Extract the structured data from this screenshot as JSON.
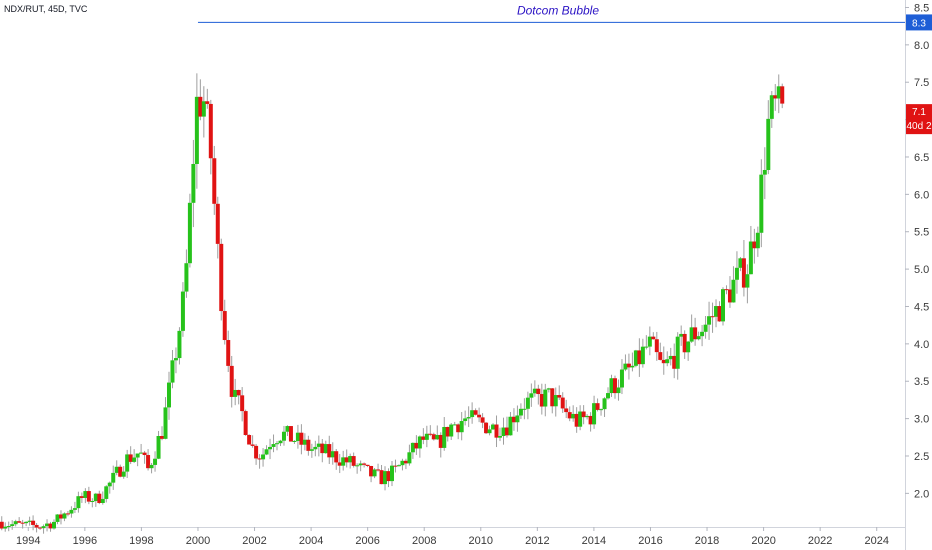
{
  "header": {
    "symbol": "NDX/RUT, 45D, TVC"
  },
  "colors": {
    "up": "#26c21b",
    "down": "#e01313",
    "wick": "#9e9e9e",
    "line": "#1e5ed6",
    "annotation": "#2a12c4",
    "badge_last": "#e01313",
    "badge_line": "#1e5ed6"
  },
  "chart_data": {
    "type": "candlestick",
    "title": "",
    "x_range": [
      1993.0,
      2025.0
    ],
    "y_range": [
      1.55,
      8.6
    ],
    "y_ticks": [
      "2.0",
      "2.5",
      "3.0",
      "3.5",
      "4.0",
      "4.5",
      "5.0",
      "5.5",
      "6.0",
      "6.5",
      "7.0",
      "7.5",
      "8.0",
      "8.5"
    ],
    "x_ticks": [
      "1994",
      "1996",
      "1998",
      "2000",
      "2002",
      "2004",
      "2006",
      "2008",
      "2010",
      "2012",
      "2014",
      "2016",
      "2018",
      "2020",
      "2022",
      "2024"
    ],
    "reference_line": {
      "value": 8.3,
      "start_x": 2000.0,
      "label": "Dotcom Bubble",
      "badge": "8.3"
    },
    "last_price_badge": {
      "price": "7.1",
      "countdown": "40d 2"
    },
    "anchors": [
      [
        1993.0,
        1.62
      ],
      [
        1993.5,
        1.58
      ],
      [
        1994.0,
        1.57
      ],
      [
        1994.5,
        1.56
      ],
      [
        1995.0,
        1.62
      ],
      [
        1995.5,
        1.78
      ],
      [
        1996.0,
        1.95
      ],
      [
        1996.5,
        1.92
      ],
      [
        1997.0,
        2.15
      ],
      [
        1997.5,
        2.45
      ],
      [
        1998.0,
        2.55
      ],
      [
        1998.3,
        2.32
      ],
      [
        1998.8,
        2.85
      ],
      [
        1999.2,
        3.7
      ],
      [
        1999.6,
        4.7
      ],
      [
        1999.85,
        6.2
      ],
      [
        2000.0,
        7.2
      ],
      [
        2000.25,
        7.3
      ],
      [
        2000.5,
        6.6
      ],
      [
        2000.8,
        5.0
      ],
      [
        2001.0,
        4.2
      ],
      [
        2001.3,
        3.3
      ],
      [
        2001.6,
        3.1
      ],
      [
        2002.0,
        2.6
      ],
      [
        2002.3,
        2.5
      ],
      [
        2002.7,
        2.75
      ],
      [
        2003.0,
        2.8
      ],
      [
        2003.5,
        2.72
      ],
      [
        2004.0,
        2.6
      ],
      [
        2004.5,
        2.55
      ],
      [
        2005.0,
        2.48
      ],
      [
        2005.5,
        2.4
      ],
      [
        2006.0,
        2.28
      ],
      [
        2006.5,
        2.2
      ],
      [
        2007.0,
        2.28
      ],
      [
        2007.5,
        2.5
      ],
      [
        2008.0,
        2.72
      ],
      [
        2008.5,
        2.65
      ],
      [
        2009.0,
        2.9
      ],
      [
        2009.5,
        3.0
      ],
      [
        2010.0,
        2.95
      ],
      [
        2010.5,
        2.88
      ],
      [
        2011.0,
        2.92
      ],
      [
        2011.5,
        3.2
      ],
      [
        2012.0,
        3.25
      ],
      [
        2012.5,
        3.3
      ],
      [
        2013.0,
        3.1
      ],
      [
        2013.5,
        2.95
      ],
      [
        2014.0,
        3.05
      ],
      [
        2014.5,
        3.35
      ],
      [
        2015.0,
        3.55
      ],
      [
        2015.5,
        3.7
      ],
      [
        2016.0,
        4.0
      ],
      [
        2016.5,
        3.65
      ],
      [
        2017.0,
        3.9
      ],
      [
        2017.5,
        4.1
      ],
      [
        2018.0,
        4.25
      ],
      [
        2018.5,
        4.5
      ],
      [
        2019.0,
        4.8
      ],
      [
        2019.5,
        5.05
      ],
      [
        2019.9,
        5.8
      ],
      [
        2020.2,
        6.9
      ],
      [
        2020.45,
        7.15
      ],
      [
        2020.6,
        7.1
      ]
    ]
  }
}
